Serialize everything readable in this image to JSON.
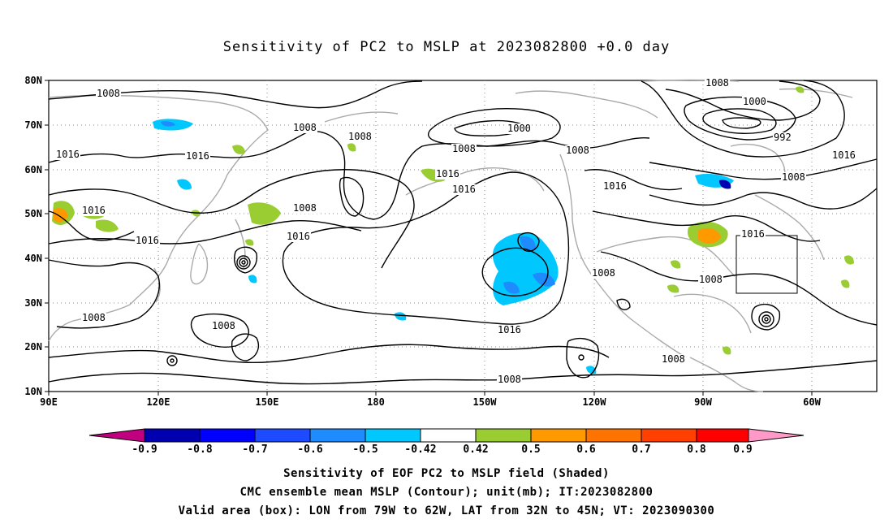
{
  "title": "Sensitivity of PC2 to MSLP at 2023082800 +0.0 day",
  "map": {
    "lat_ticks": [
      "80N",
      "70N",
      "60N",
      "50N",
      "40N",
      "30N",
      "20N",
      "10N"
    ],
    "lon_ticks": [
      "90E",
      "120E",
      "150E",
      "180",
      "150W",
      "120W",
      "90W",
      "60W"
    ],
    "contour_labels": [
      {
        "text": "1008"
      },
      {
        "text": "1008"
      },
      {
        "text": "1016"
      },
      {
        "text": "1016"
      },
      {
        "text": "1008"
      },
      {
        "text": "1000"
      },
      {
        "text": "1008"
      },
      {
        "text": "1008"
      },
      {
        "text": "1008"
      },
      {
        "text": "1000"
      },
      {
        "text": "992"
      },
      {
        "text": "1016"
      },
      {
        "text": "1016"
      },
      {
        "text": "1016"
      },
      {
        "text": "1016"
      },
      {
        "text": "1008"
      },
      {
        "text": "1016"
      },
      {
        "text": "1016"
      },
      {
        "text": "1016"
      },
      {
        "text": "1016"
      },
      {
        "text": "1008"
      },
      {
        "text": "1008"
      },
      {
        "text": "1008"
      },
      {
        "text": "1008"
      },
      {
        "text": "1016"
      },
      {
        "text": "1008"
      },
      {
        "text": "1008"
      },
      {
        "text": "1008"
      }
    ],
    "box": {
      "lon": [
        "79W",
        "62W"
      ],
      "lat": [
        "32N",
        "45N"
      ]
    }
  },
  "colorbar": {
    "labels": [
      "-0.9",
      "-0.8",
      "-0.7",
      "-0.6",
      "-0.5",
      "-0.42",
      "0.42",
      "0.5",
      "0.6",
      "0.7",
      "0.8",
      "0.9"
    ],
    "colors": [
      "#c0007f",
      "#0000b0",
      "#0000ff",
      "#1e4bff",
      "#1e8cff",
      "#00c8ff",
      "#ffffff",
      "#9acd32",
      "#ff9900",
      "#ff7300",
      "#ff4000",
      "#ff0000",
      "#ff99c8"
    ]
  },
  "captions": {
    "line1": "Sensitivity of EOF PC2 to MSLP field (Shaded)",
    "line2": "CMC ensemble mean MSLP (Contour); unit(mb); IT:2023082800",
    "line3": "Valid area (box): LON from 79W to 62W, LAT from 32N to 45N; VT: 2023090300"
  }
}
